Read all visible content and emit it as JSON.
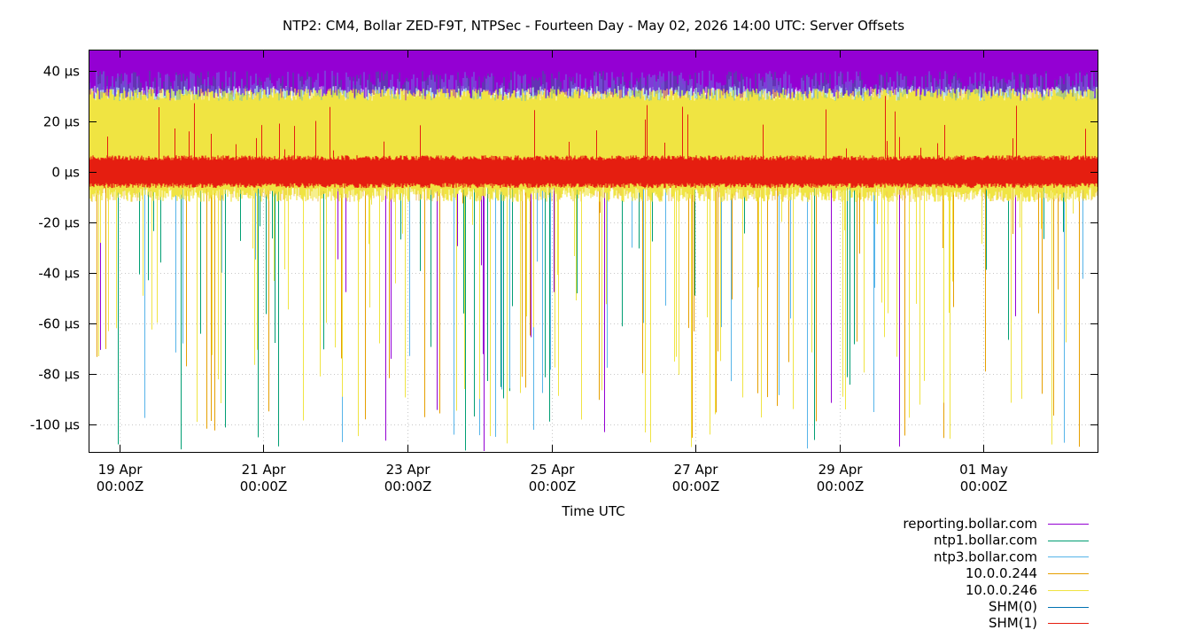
{
  "chart_data": {
    "type": "line",
    "title": "NTP2: CM4, Bollar ZED-F9T, NTPSec - Fourteen Day - May 02, 2026 14:00 UTC: Server Offsets",
    "xlabel": "Time UTC",
    "ylabel": "",
    "ylim": [
      -111,
      48
    ],
    "y_ticks": [
      {
        "value": 40,
        "label": "40 µs"
      },
      {
        "value": 20,
        "label": "20 µs"
      },
      {
        "value": 0,
        "label": "0 µs"
      },
      {
        "value": -20,
        "label": "-20 µs"
      },
      {
        "value": -40,
        "label": "-40 µs"
      },
      {
        "value": -60,
        "label": "-60 µs"
      },
      {
        "value": -80,
        "label": "-80 µs"
      },
      {
        "value": -100,
        "label": "-100 µs"
      }
    ],
    "xlim": [
      "2026-04-18T14:00Z",
      "2026-05-02T14:00Z"
    ],
    "x_ticks": [
      {
        "value": "2026-04-19T00:00Z",
        "line1": "19 Apr",
        "line2": "00:00Z"
      },
      {
        "value": "2026-04-21T00:00Z",
        "line1": "21 Apr",
        "line2": "00:00Z"
      },
      {
        "value": "2026-04-23T00:00Z",
        "line1": "23 Apr",
        "line2": "00:00Z"
      },
      {
        "value": "2026-04-25T00:00Z",
        "line1": "25 Apr",
        "line2": "00:00Z"
      },
      {
        "value": "2026-04-27T00:00Z",
        "line1": "27 Apr",
        "line2": "00:00Z"
      },
      {
        "value": "2026-04-29T00:00Z",
        "line1": "29 Apr",
        "line2": "00:00Z"
      },
      {
        "value": "2026-05-01T00:00Z",
        "line1": "01 May",
        "line2": "00:00Z"
      }
    ],
    "grid": true,
    "legend_position": "bottom-right",
    "series": [
      {
        "name": "reporting.bollar.com",
        "color": "#9400d3",
        "typical_range": [
          30,
          48
        ]
      },
      {
        "name": "ntp1.bollar.com",
        "color": "#009e73",
        "typical_range": [
          -6,
          34
        ]
      },
      {
        "name": "ntp3.bollar.com",
        "color": "#56b4e9",
        "typical_range": [
          -6,
          40
        ]
      },
      {
        "name": "10.0.0.244",
        "color": "#e69f00",
        "typical_range": [
          -6,
          34
        ]
      },
      {
        "name": "10.0.0.246",
        "color": "#f0e442",
        "typical_range": [
          -12,
          33
        ]
      },
      {
        "name": "SHM(0)",
        "color": "#0072b2",
        "typical_range": [
          -5,
          5
        ]
      },
      {
        "name": "SHM(1)",
        "color": "#e51e10",
        "typical_range": [
          -6,
          6
        ]
      }
    ]
  }
}
